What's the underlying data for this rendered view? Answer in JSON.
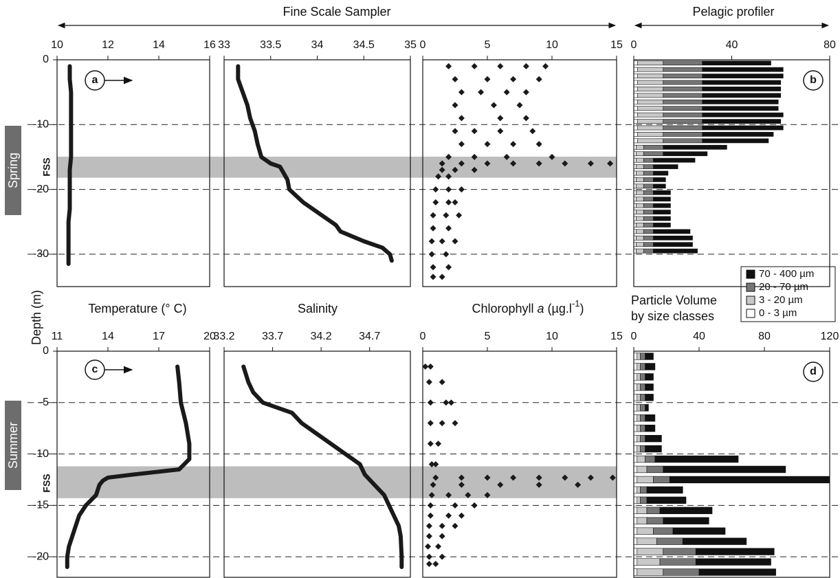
{
  "figure": {
    "fss_title": "Fine Scale Sampler",
    "pelagic_title": "Pelagic profiler",
    "ylabel": "Depth (m)",
    "legend_title": [
      "Particle Volume",
      "by size classes"
    ],
    "rows": [
      {
        "season": "Spring",
        "band_label": "FSS",
        "band": [
          -14.95,
          -18.2
        ]
      },
      {
        "season": "Summer",
        "band_label": "FSS",
        "band": [
          -11.2,
          -14.3
        ]
      }
    ]
  },
  "chart_data": [
    {
      "type": "line",
      "label": "a",
      "xlabel": {
        "text": "Temperature (° C)"
      },
      "xlim": [
        10,
        16
      ],
      "xticks": [
        10,
        12,
        14,
        16
      ],
      "ylim": [
        -35,
        0
      ],
      "yticks": [
        0,
        -10,
        -20,
        -30
      ],
      "x": [
        10.5,
        10.5,
        10.55,
        10.55,
        10.55,
        10.55,
        10.55,
        10.55,
        10.5,
        10.5,
        10.5,
        10.5,
        10.45,
        10.45,
        10.45,
        10.45
      ],
      "y": [
        -1,
        -3,
        -5,
        -7,
        -9,
        -11,
        -13,
        -15,
        -17,
        -19,
        -21,
        -23,
        -25,
        -27,
        -29,
        -31.5
      ]
    },
    {
      "type": "line",
      "xlabel": {
        "text": "Salinity"
      },
      "xlim": [
        33,
        35
      ],
      "xticks": [
        33,
        33.5,
        34,
        34.5,
        35
      ],
      "ylim": [
        -35,
        0
      ],
      "x": [
        33.15,
        33.15,
        33.2,
        33.25,
        33.28,
        33.33,
        33.36,
        33.4,
        33.5,
        33.6,
        33.62,
        33.66,
        33.68,
        33.7,
        33.85,
        34.05,
        34.2,
        34.25,
        34.5,
        34.7,
        34.78,
        34.8
      ],
      "y": [
        -1,
        -3,
        -5,
        -7,
        -9,
        -11,
        -13,
        -15,
        -16,
        -16.5,
        -17,
        -18,
        -18.5,
        -20,
        -22,
        -24,
        -25.5,
        -26.5,
        -28,
        -29,
        -30,
        -31
      ]
    },
    {
      "type": "scatter",
      "xlabel": {
        "text": "Chlorophyll ",
        "italic": "a",
        "unit": " (µg.l",
        "sup": "-1",
        "close": ")"
      },
      "xlim": [
        0,
        15
      ],
      "xticks": [
        0,
        5,
        10,
        15
      ],
      "ylim": [
        -35,
        0
      ],
      "x": [
        2,
        4,
        6,
        8,
        9.5,
        2.5,
        5,
        7,
        9,
        3,
        4.5,
        6.5,
        8,
        2.5,
        5.5,
        7.5,
        3,
        6,
        8,
        2.5,
        4,
        6,
        8.5,
        3,
        5,
        7,
        9,
        2,
        4,
        6.5,
        10,
        1.5,
        3,
        5,
        7,
        9,
        11,
        13,
        14.5,
        1.5,
        2.5,
        4,
        1.2,
        2,
        1,
        2,
        3,
        1,
        2,
        2.5,
        0.8,
        1.8,
        2.8,
        0.8,
        2,
        0.7,
        1.5,
        2.5,
        0.7,
        1.8,
        0.8,
        2,
        0.8,
        1.5
      ],
      "y": [
        -1,
        -1,
        -1,
        -1,
        -1,
        -3,
        -3,
        -3,
        -3,
        -5,
        -5,
        -5,
        -5,
        -7,
        -7,
        -7,
        -9,
        -9,
        -9,
        -11,
        -11,
        -11,
        -11,
        -13,
        -13,
        -13,
        -13,
        -15,
        -15,
        -15,
        -15,
        -16,
        -16,
        -16,
        -16,
        -16,
        -16,
        -16,
        -16,
        -17,
        -17,
        -17,
        -18,
        -18,
        -20,
        -20,
        -20,
        -22,
        -22,
        -22,
        -24,
        -24,
        -24,
        -26,
        -26,
        -28,
        -28,
        -28,
        -30,
        -30,
        -32,
        -32,
        -33.5,
        -33.5
      ]
    },
    {
      "type": "bar",
      "label": "b",
      "orientation": "horizontal",
      "stacked": true,
      "legend": true,
      "xlim": [
        0,
        80
      ],
      "xticks": [
        0,
        40,
        80
      ],
      "ylim": [
        -35,
        0
      ],
      "y": [
        -0.5,
        -1.5,
        -2.5,
        -3.5,
        -4.5,
        -5.5,
        -6.5,
        -7.5,
        -8.5,
        -9.5,
        -10.5,
        -11.5,
        -12.5,
        -13.5,
        -14.5,
        -15.5,
        -16.5,
        -17.5,
        -18.5,
        -19.5,
        -20.5,
        -21.5,
        -22.5,
        -23.5,
        -24.5,
        -25.5,
        -26.5,
        -27.5,
        -28.5,
        -29.5
      ],
      "series": [
        {
          "name": "0 - 3 µm",
          "color": "#ffffff",
          "values": [
            1.5,
            1.5,
            1.5,
            1.5,
            1.5,
            1.5,
            1.5,
            1.5,
            1.5,
            1.5,
            1.5,
            1.5,
            1.5,
            1,
            1,
            1,
            1,
            1,
            1,
            1,
            1,
            1,
            1,
            1,
            1,
            1,
            1,
            1,
            1,
            1
          ]
        },
        {
          "name": "3 - 20 µm",
          "color": "#c8c8c8",
          "values": [
            10.5,
            10.5,
            10.5,
            10.5,
            10.5,
            10.5,
            10.5,
            10.5,
            10.5,
            10.5,
            10.5,
            10.5,
            10.5,
            3,
            3,
            3,
            3,
            3,
            3,
            3,
            3,
            3,
            3,
            3,
            3,
            3,
            3,
            3,
            3,
            3
          ]
        },
        {
          "name": "20 - 70 µm",
          "color": "#767676",
          "values": [
            16,
            16,
            16,
            16,
            16,
            16,
            16,
            16,
            16,
            16,
            16,
            16,
            16,
            8,
            8,
            4,
            4,
            4,
            4,
            4,
            4,
            4,
            4,
            4,
            4,
            4,
            4,
            4,
            4,
            4
          ]
        },
        {
          "name": "70 - 400 µm",
          "color": "#111111",
          "values": [
            28,
            33,
            33,
            32,
            32,
            32,
            31,
            31,
            33,
            32,
            33,
            29,
            27,
            26,
            18,
            17,
            10,
            6,
            5,
            5,
            7,
            7,
            7,
            7,
            7,
            7,
            15,
            16,
            16,
            18
          ]
        }
      ]
    },
    {
      "type": "line",
      "label": "c",
      "xlabel": {},
      "xlim": [
        11,
        20
      ],
      "xticks": [
        11,
        14,
        17,
        20
      ],
      "ylim": [
        -22,
        0
      ],
      "yticks": [
        0,
        -5,
        -10,
        -15,
        -20
      ],
      "x": [
        18.1,
        18.2,
        18.3,
        18.6,
        18.8,
        18.8,
        18.2,
        15.5,
        14,
        13.7,
        13.5,
        13.3,
        12.7,
        12.3,
        12.1,
        11.9,
        11.7,
        11.6,
        11.6
      ],
      "y": [
        -1.5,
        -3,
        -5,
        -7,
        -9,
        -10.5,
        -11.5,
        -12,
        -12.3,
        -12.6,
        -13,
        -14,
        -15,
        -16,
        -17,
        -18,
        -19,
        -20,
        -21
      ]
    },
    {
      "type": "line",
      "xlabel": {},
      "xlim": [
        33.2,
        35.12
      ],
      "xticks": [
        33.2,
        33.7,
        34.2,
        34.7
      ],
      "ylim": [
        -22,
        0
      ],
      "x": [
        33.4,
        33.45,
        33.5,
        33.6,
        33.9,
        34,
        34.15,
        34.3,
        34.45,
        34.6,
        34.65,
        34.75,
        34.85,
        34.9,
        34.95,
        35,
        35.02,
        35.03,
        35.03
      ],
      "y": [
        -1.5,
        -3,
        -4,
        -5,
        -6,
        -7,
        -8,
        -9,
        -10,
        -11,
        -12,
        -13,
        -14,
        -15,
        -16,
        -17,
        -18,
        -20,
        -21
      ]
    },
    {
      "type": "scatter",
      "xlabel": {},
      "xlim": [
        0,
        15
      ],
      "xticks": [
        0,
        5,
        10,
        15
      ],
      "ylim": [
        -22,
        0
      ],
      "x": [
        0.2,
        0.6,
        0.5,
        1.5,
        0.6,
        1.8,
        2.2,
        0.6,
        1.5,
        2.5,
        0.6,
        1.2,
        0.7,
        1,
        1,
        3,
        5,
        7,
        9,
        11,
        13,
        14.7,
        0.8,
        3,
        6,
        9,
        12,
        0.7,
        2,
        3.5,
        5,
        0.6,
        2.5,
        4,
        0.6,
        2,
        3,
        0.5,
        1.5,
        2.5,
        0.5,
        1.5,
        0.4,
        1.2,
        0.5,
        1.5,
        0.5,
        1
      ],
      "y": [
        -1.5,
        -1.5,
        -3,
        -3,
        -5,
        -5,
        -5,
        -7,
        -7,
        -7,
        -9,
        -9,
        -11,
        -11,
        -12.3,
        -12.3,
        -12.3,
        -12.3,
        -12.3,
        -12.3,
        -12.3,
        -12.3,
        -13,
        -13,
        -13,
        -13,
        -13,
        -14,
        -14,
        -14,
        -14,
        -15,
        -15,
        -15,
        -16,
        -16,
        -16,
        -17,
        -17,
        -17,
        -18,
        -18,
        -19,
        -19,
        -20,
        -20,
        -20.7,
        -20.7
      ]
    },
    {
      "type": "bar",
      "label": "d",
      "orientation": "horizontal",
      "stacked": true,
      "xlim": [
        0,
        120
      ],
      "xticks": [
        0,
        40,
        80,
        120
      ],
      "ylim": [
        -22,
        0
      ],
      "y": [
        -0.5,
        -1.5,
        -2.5,
        -3.5,
        -4.5,
        -5.5,
        -6.5,
        -7.5,
        -8.5,
        -9.5,
        -10.5,
        -11.5,
        -12.5,
        -13.5,
        -14.5,
        -15.5,
        -16.5,
        -17.5,
        -18.5,
        -19.5,
        -20.5,
        -21.5
      ],
      "series": [
        {
          "color": "#ffffff",
          "values": [
            2,
            2,
            2,
            2,
            2,
            2,
            2,
            2,
            2,
            2,
            2,
            2,
            2,
            2,
            2,
            2,
            2,
            2,
            2,
            2,
            2,
            2
          ]
        },
        {
          "color": "#c8c8c8",
          "values": [
            2,
            2,
            2,
            2,
            2,
            2,
            2,
            2,
            2,
            2,
            5,
            6,
            10,
            2,
            2,
            6,
            6,
            10,
            12,
            16,
            14,
            16
          ]
        },
        {
          "color": "#767676",
          "values": [
            3,
            3,
            3,
            3,
            3,
            3,
            3,
            3,
            3,
            3,
            6,
            10,
            10,
            4,
            4,
            8,
            10,
            12,
            16,
            20,
            22,
            22
          ]
        },
        {
          "color": "#111111",
          "values": [
            5,
            6,
            5,
            5,
            5,
            2,
            6,
            6,
            10,
            10,
            51,
            75,
            98,
            22,
            24,
            32,
            28,
            32,
            39,
            48,
            46,
            47
          ]
        }
      ]
    }
  ]
}
